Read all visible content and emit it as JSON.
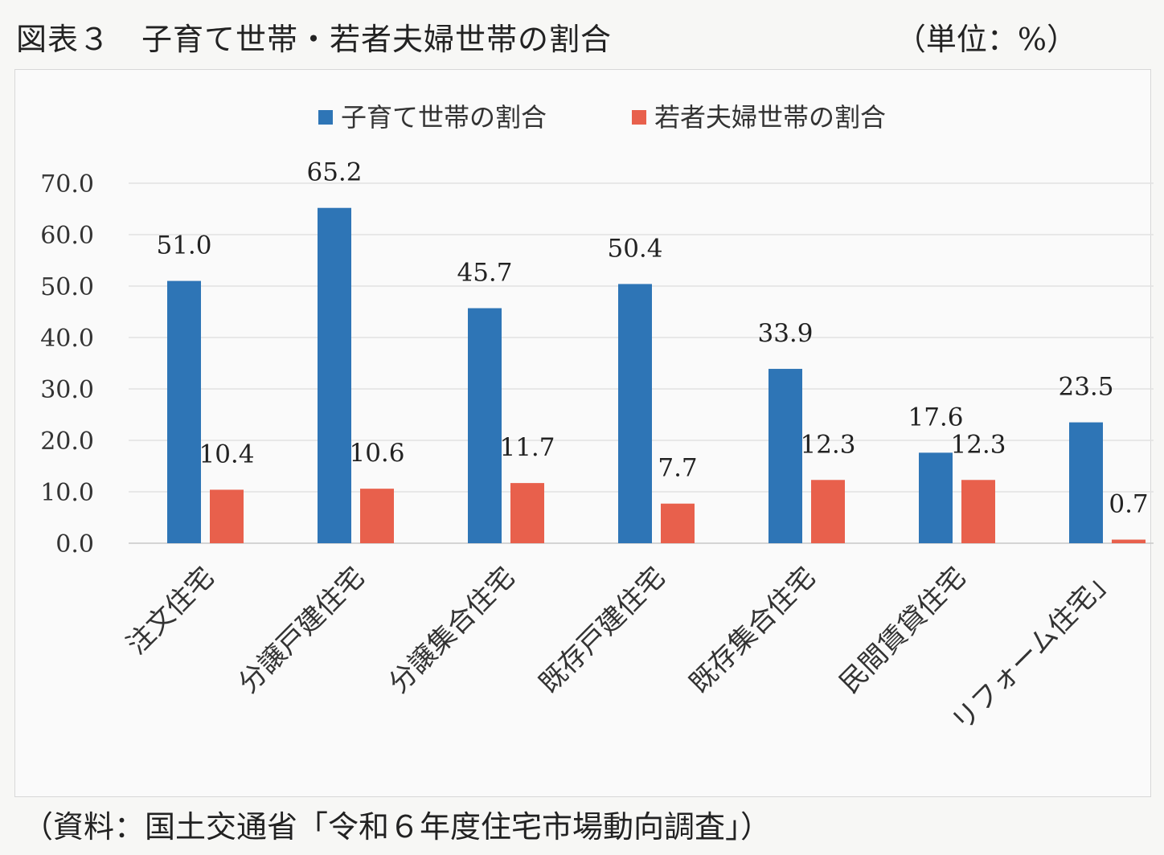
{
  "header": {
    "title": "図表３　子育て世帯・若者夫婦世帯の割合",
    "unit": "（単位：%）"
  },
  "footer": {
    "source": "（資料：国土交通省「令和６年度住宅市場動向調査」）"
  },
  "chart_data": {
    "type": "bar",
    "categories": [
      "注文住宅",
      "分譲戸建住宅",
      "分譲集合住宅",
      "既存戸建住宅",
      "既存集合住宅",
      "民間賃貸住宅",
      "リフォーム住宅」"
    ],
    "series": [
      {
        "name": "子育て世帯の割合",
        "values": [
          51.0,
          65.2,
          45.7,
          50.4,
          33.9,
          17.6,
          23.5
        ],
        "color": "#2e75b6"
      },
      {
        "name": "若者夫婦世帯の割合",
        "values": [
          10.4,
          10.6,
          11.7,
          7.7,
          12.3,
          12.3,
          0.7
        ],
        "color": "#e8604c"
      }
    ],
    "yticks": [
      "0.0",
      "10.0",
      "20.0",
      "30.0",
      "40.0",
      "50.0",
      "60.0",
      "70.0"
    ],
    "ylim": [
      0,
      70
    ],
    "grid": true,
    "legend": "top-center"
  }
}
